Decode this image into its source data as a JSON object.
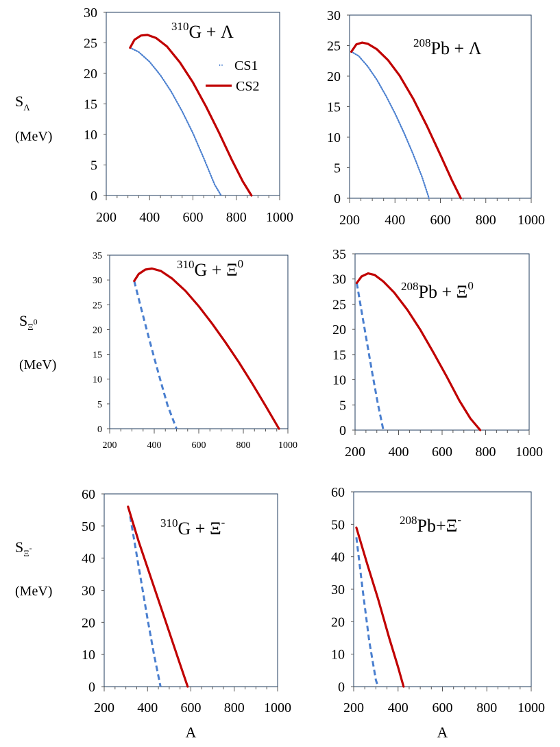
{
  "figure": {
    "x_axis_label": "A",
    "row_labels": [
      {
        "sym": "S",
        "sub": "Λ",
        "sup": "",
        "unit": "(MeV)"
      },
      {
        "sym": "S",
        "sub": "Ξ",
        "sup": "0",
        "unit": "(MeV)"
      },
      {
        "sym": "S",
        "sub": "Ξ",
        "sup": "-",
        "unit": "(MeV)"
      }
    ],
    "legend": [
      {
        "label": "CS1",
        "color": "#4a7fcf",
        "style": "dotted"
      },
      {
        "label": "CS2",
        "color": "#c00000",
        "style": "solid"
      }
    ]
  },
  "chart_data": [
    {
      "type": "line",
      "title": {
        "sup": "310",
        "base": "G + Λ",
        "sup2": ""
      },
      "xlabel": "",
      "ylabel": "S_Λ (MeV)",
      "xlim": [
        200,
        1000
      ],
      "ylim": [
        0,
        30
      ],
      "xticks": [
        200,
        400,
        600,
        800,
        1000
      ],
      "yticks": [
        0,
        5,
        10,
        15,
        20,
        25,
        30
      ],
      "series": [
        {
          "name": "CS1",
          "color": "#4a7fcf",
          "style": "dotted",
          "x": [
            310,
            350,
            400,
            450,
            500,
            550,
            600,
            650,
            700,
            730
          ],
          "y": [
            24.2,
            23.5,
            21.9,
            19.7,
            17.0,
            13.8,
            10.2,
            6.1,
            1.8,
            0
          ]
        },
        {
          "name": "CS2",
          "color": "#c00000",
          "style": "solid",
          "x": [
            310,
            330,
            360,
            390,
            430,
            480,
            540,
            600,
            660,
            720,
            780,
            830,
            870
          ],
          "y": [
            24.2,
            25.5,
            26.2,
            26.3,
            25.8,
            24.4,
            21.8,
            18.5,
            14.6,
            10.3,
            5.8,
            2.3,
            0
          ]
        }
      ]
    },
    {
      "type": "line",
      "title": {
        "sup": "208",
        "base": "Pb + Λ",
        "sup2": ""
      },
      "xlabel": "",
      "ylabel": "",
      "xlim": [
        200,
        1000
      ],
      "ylim": [
        0,
        30
      ],
      "xticks": [
        200,
        400,
        600,
        800,
        1000
      ],
      "yticks": [
        0,
        5,
        10,
        15,
        20,
        25,
        30
      ],
      "series": [
        {
          "name": "CS1",
          "color": "#4a7fcf",
          "style": "dotted",
          "x": [
            208,
            240,
            280,
            320,
            360,
            400,
            440,
            480,
            520,
            550
          ],
          "y": [
            24.0,
            23.3,
            21.6,
            19.4,
            16.8,
            13.9,
            10.7,
            7.2,
            3.4,
            0
          ]
        },
        {
          "name": "CS2",
          "color": "#c00000",
          "style": "solid",
          "x": [
            208,
            230,
            255,
            280,
            320,
            370,
            420,
            480,
            540,
            600,
            650,
            690
          ],
          "y": [
            24.0,
            25.2,
            25.5,
            25.3,
            24.4,
            22.6,
            20.1,
            16.3,
            11.9,
            7.1,
            3.0,
            0
          ]
        }
      ]
    },
    {
      "type": "line",
      "title": {
        "sup": "310",
        "base": "G + Ξ",
        "sup2": "0"
      },
      "xlabel": "",
      "ylabel": "S_Ξ0 (MeV)",
      "xlim": [
        200,
        1000
      ],
      "ylim": [
        0,
        35
      ],
      "xticks": [
        200,
        400,
        600,
        800,
        1000
      ],
      "yticks": [
        0,
        5,
        10,
        15,
        20,
        25,
        30,
        35
      ],
      "series": [
        {
          "name": "CS1",
          "color": "#4a7fcf",
          "style": "dashed",
          "x": [
            310,
            340,
            370,
            400,
            430,
            460,
            500
          ],
          "y": [
            29.8,
            24.5,
            19.3,
            14.3,
            9.4,
            4.7,
            0
          ]
        },
        {
          "name": "CS2",
          "color": "#c00000",
          "style": "solid",
          "x": [
            310,
            330,
            360,
            390,
            430,
            480,
            540,
            600,
            660,
            720,
            780,
            840,
            900,
            960
          ],
          "y": [
            29.8,
            31.2,
            32.1,
            32.3,
            31.8,
            30.3,
            27.8,
            24.7,
            21.2,
            17.4,
            13.4,
            9.1,
            4.6,
            0
          ]
        }
      ]
    },
    {
      "type": "line",
      "title": {
        "sup": "208",
        "base": "Pb + Ξ",
        "sup2": "0"
      },
      "xlabel": "",
      "ylabel": "",
      "xlim": [
        200,
        1000
      ],
      "ylim": [
        0,
        35
      ],
      "xticks": [
        200,
        400,
        600,
        800,
        1000
      ],
      "yticks": [
        0,
        5,
        10,
        15,
        20,
        25,
        30,
        35
      ],
      "series": [
        {
          "name": "CS1",
          "color": "#4a7fcf",
          "style": "dashed",
          "x": [
            208,
            230,
            255,
            280,
            305,
            330
          ],
          "y": [
            29.2,
            23.6,
            17.3,
            11.1,
            5.2,
            0
          ]
        },
        {
          "name": "CS2",
          "color": "#c00000",
          "style": "solid",
          "x": [
            208,
            230,
            260,
            290,
            330,
            380,
            440,
            500,
            560,
            620,
            680,
            730,
            775
          ],
          "y": [
            29.2,
            30.5,
            31.1,
            30.8,
            29.5,
            27.3,
            23.9,
            19.9,
            15.4,
            10.7,
            5.8,
            2.3,
            0
          ]
        }
      ]
    },
    {
      "type": "line",
      "title": {
        "sup": "310",
        "base": "G + Ξ",
        "sup2": "-"
      },
      "xlabel": "A",
      "ylabel": "S_Ξ- (MeV)",
      "xlim": [
        200,
        1000
      ],
      "ylim": [
        0,
        60
      ],
      "xticks": [
        200,
        400,
        600,
        800,
        1000
      ],
      "yticks": [
        0,
        10,
        20,
        30,
        40,
        50,
        60
      ],
      "series": [
        {
          "name": "CS1",
          "color": "#4a7fcf",
          "style": "dashed",
          "x": [
            320,
            360,
            400,
            430,
            460
          ],
          "y": [
            53,
            37,
            21,
            10,
            0
          ]
        },
        {
          "name": "CS2",
          "color": "#c00000",
          "style": "solid",
          "x": [
            310,
            360,
            420,
            480,
            540,
            585
          ],
          "y": [
            56,
            45,
            33,
            21,
            9,
            0
          ]
        }
      ]
    },
    {
      "type": "line",
      "title": {
        "sup": "208",
        "base": "Pb+Ξ",
        "sup2": "-"
      },
      "xlabel": "A",
      "ylabel": "",
      "xlim": [
        200,
        1000
      ],
      "ylim": [
        0,
        60
      ],
      "xticks": [
        200,
        400,
        600,
        800,
        1000
      ],
      "yticks": [
        0,
        10,
        20,
        30,
        40,
        50,
        60
      ],
      "series": [
        {
          "name": "CS1",
          "color": "#4a7fcf",
          "style": "dashed",
          "x": [
            212,
            240,
            270,
            300,
            310
          ],
          "y": [
            46,
            30,
            14,
            2,
            0
          ]
        },
        {
          "name": "CS2",
          "color": "#c00000",
          "style": "solid",
          "x": [
            212,
            260,
            310,
            360,
            400,
            425
          ],
          "y": [
            49,
            38,
            27,
            15,
            6,
            0
          ]
        }
      ]
    }
  ]
}
